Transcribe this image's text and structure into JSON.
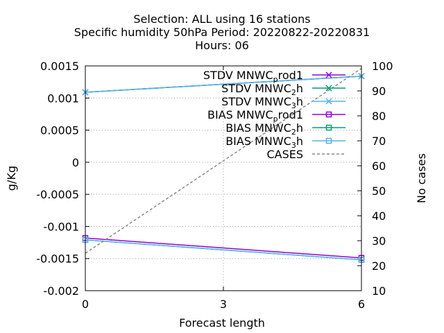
{
  "chart_data": {
    "type": "line",
    "title_lines": [
      "Selection: ALL using    16 stations",
      "Specific humidity 50hPa   Period: 20220822-20220831",
      "Hours:  06"
    ],
    "xlabel": "Forecast length",
    "ylabel": "g/Kg",
    "y2label": "No cases",
    "x_ticks": [
      0,
      3,
      6
    ],
    "x_tick_labels": [
      "0",
      "3",
      "6"
    ],
    "xlim": [
      0,
      6
    ],
    "ylim": [
      -0.002,
      0.0015
    ],
    "y_ticks": [
      -0.002,
      -0.0015,
      -0.001,
      -0.0005,
      0,
      0.0005,
      0.001,
      0.0015
    ],
    "y_tick_labels": [
      "-0.002",
      "-0.0015",
      "-0.001",
      "-0.0005",
      "0",
      "0.0005",
      "0.001",
      "0.0015"
    ],
    "y2lim": [
      10,
      100
    ],
    "y2_ticks": [
      10,
      20,
      30,
      40,
      50,
      60,
      70,
      80,
      90,
      100
    ],
    "y2_tick_labels": [
      "10",
      "20",
      "30",
      "40",
      "50",
      "60",
      "70",
      "80",
      "90",
      "100"
    ],
    "grid": true,
    "legend_position": "top-right",
    "series": [
      {
        "name": "STDV MNWC_prod1",
        "label_main": "STDV MNWC",
        "label_sub": "p",
        "label_tail": "rod1",
        "color": "#9400d3",
        "marker": "x",
        "axis": "y",
        "x": [
          0,
          6
        ],
        "values": [
          0.00109,
          0.00134
        ]
      },
      {
        "name": "STDV MNWC_2h",
        "label_main": "STDV MNWC",
        "label_sub": "2",
        "label_tail": "h",
        "color": "#009e73",
        "marker": "x",
        "axis": "y",
        "x": [
          0,
          6
        ],
        "values": [
          0.00109,
          0.00134
        ]
      },
      {
        "name": "STDV MNWC_3h",
        "label_main": "STDV MNWC",
        "label_sub": "3",
        "label_tail": "h",
        "color": "#56b4e9",
        "marker": "x",
        "axis": "y",
        "x": [
          0,
          6
        ],
        "values": [
          0.00109,
          0.00134
        ]
      },
      {
        "name": "BIAS MNWC_prod1",
        "label_main": "BIAS MNWC",
        "label_sub": "p",
        "label_tail": "rod1",
        "color": "#9400d3",
        "marker": "square",
        "axis": "y",
        "x": [
          0,
          6
        ],
        "values": [
          -0.00118,
          -0.00149
        ]
      },
      {
        "name": "BIAS MNWC_2h",
        "label_main": "BIAS MNWC",
        "label_sub": "2",
        "label_tail": "h",
        "color": "#009e73",
        "marker": "square",
        "axis": "y",
        "x": [
          0,
          6
        ],
        "values": [
          -0.00121,
          -0.00152
        ]
      },
      {
        "name": "BIAS MNWC_3h",
        "label_main": "BIAS MNWC",
        "label_sub": "3",
        "label_tail": "h",
        "color": "#56b4e9",
        "marker": "square",
        "axis": "y",
        "x": [
          0,
          6
        ],
        "values": [
          -0.00121,
          -0.00152
        ]
      },
      {
        "name": "CASES",
        "label_main": "CASES",
        "label_sub": "",
        "label_tail": "",
        "color": "#888888",
        "marker": "none",
        "dashed": true,
        "axis": "y2",
        "x": [
          0,
          6
        ],
        "values": [
          25,
          99
        ]
      }
    ]
  }
}
